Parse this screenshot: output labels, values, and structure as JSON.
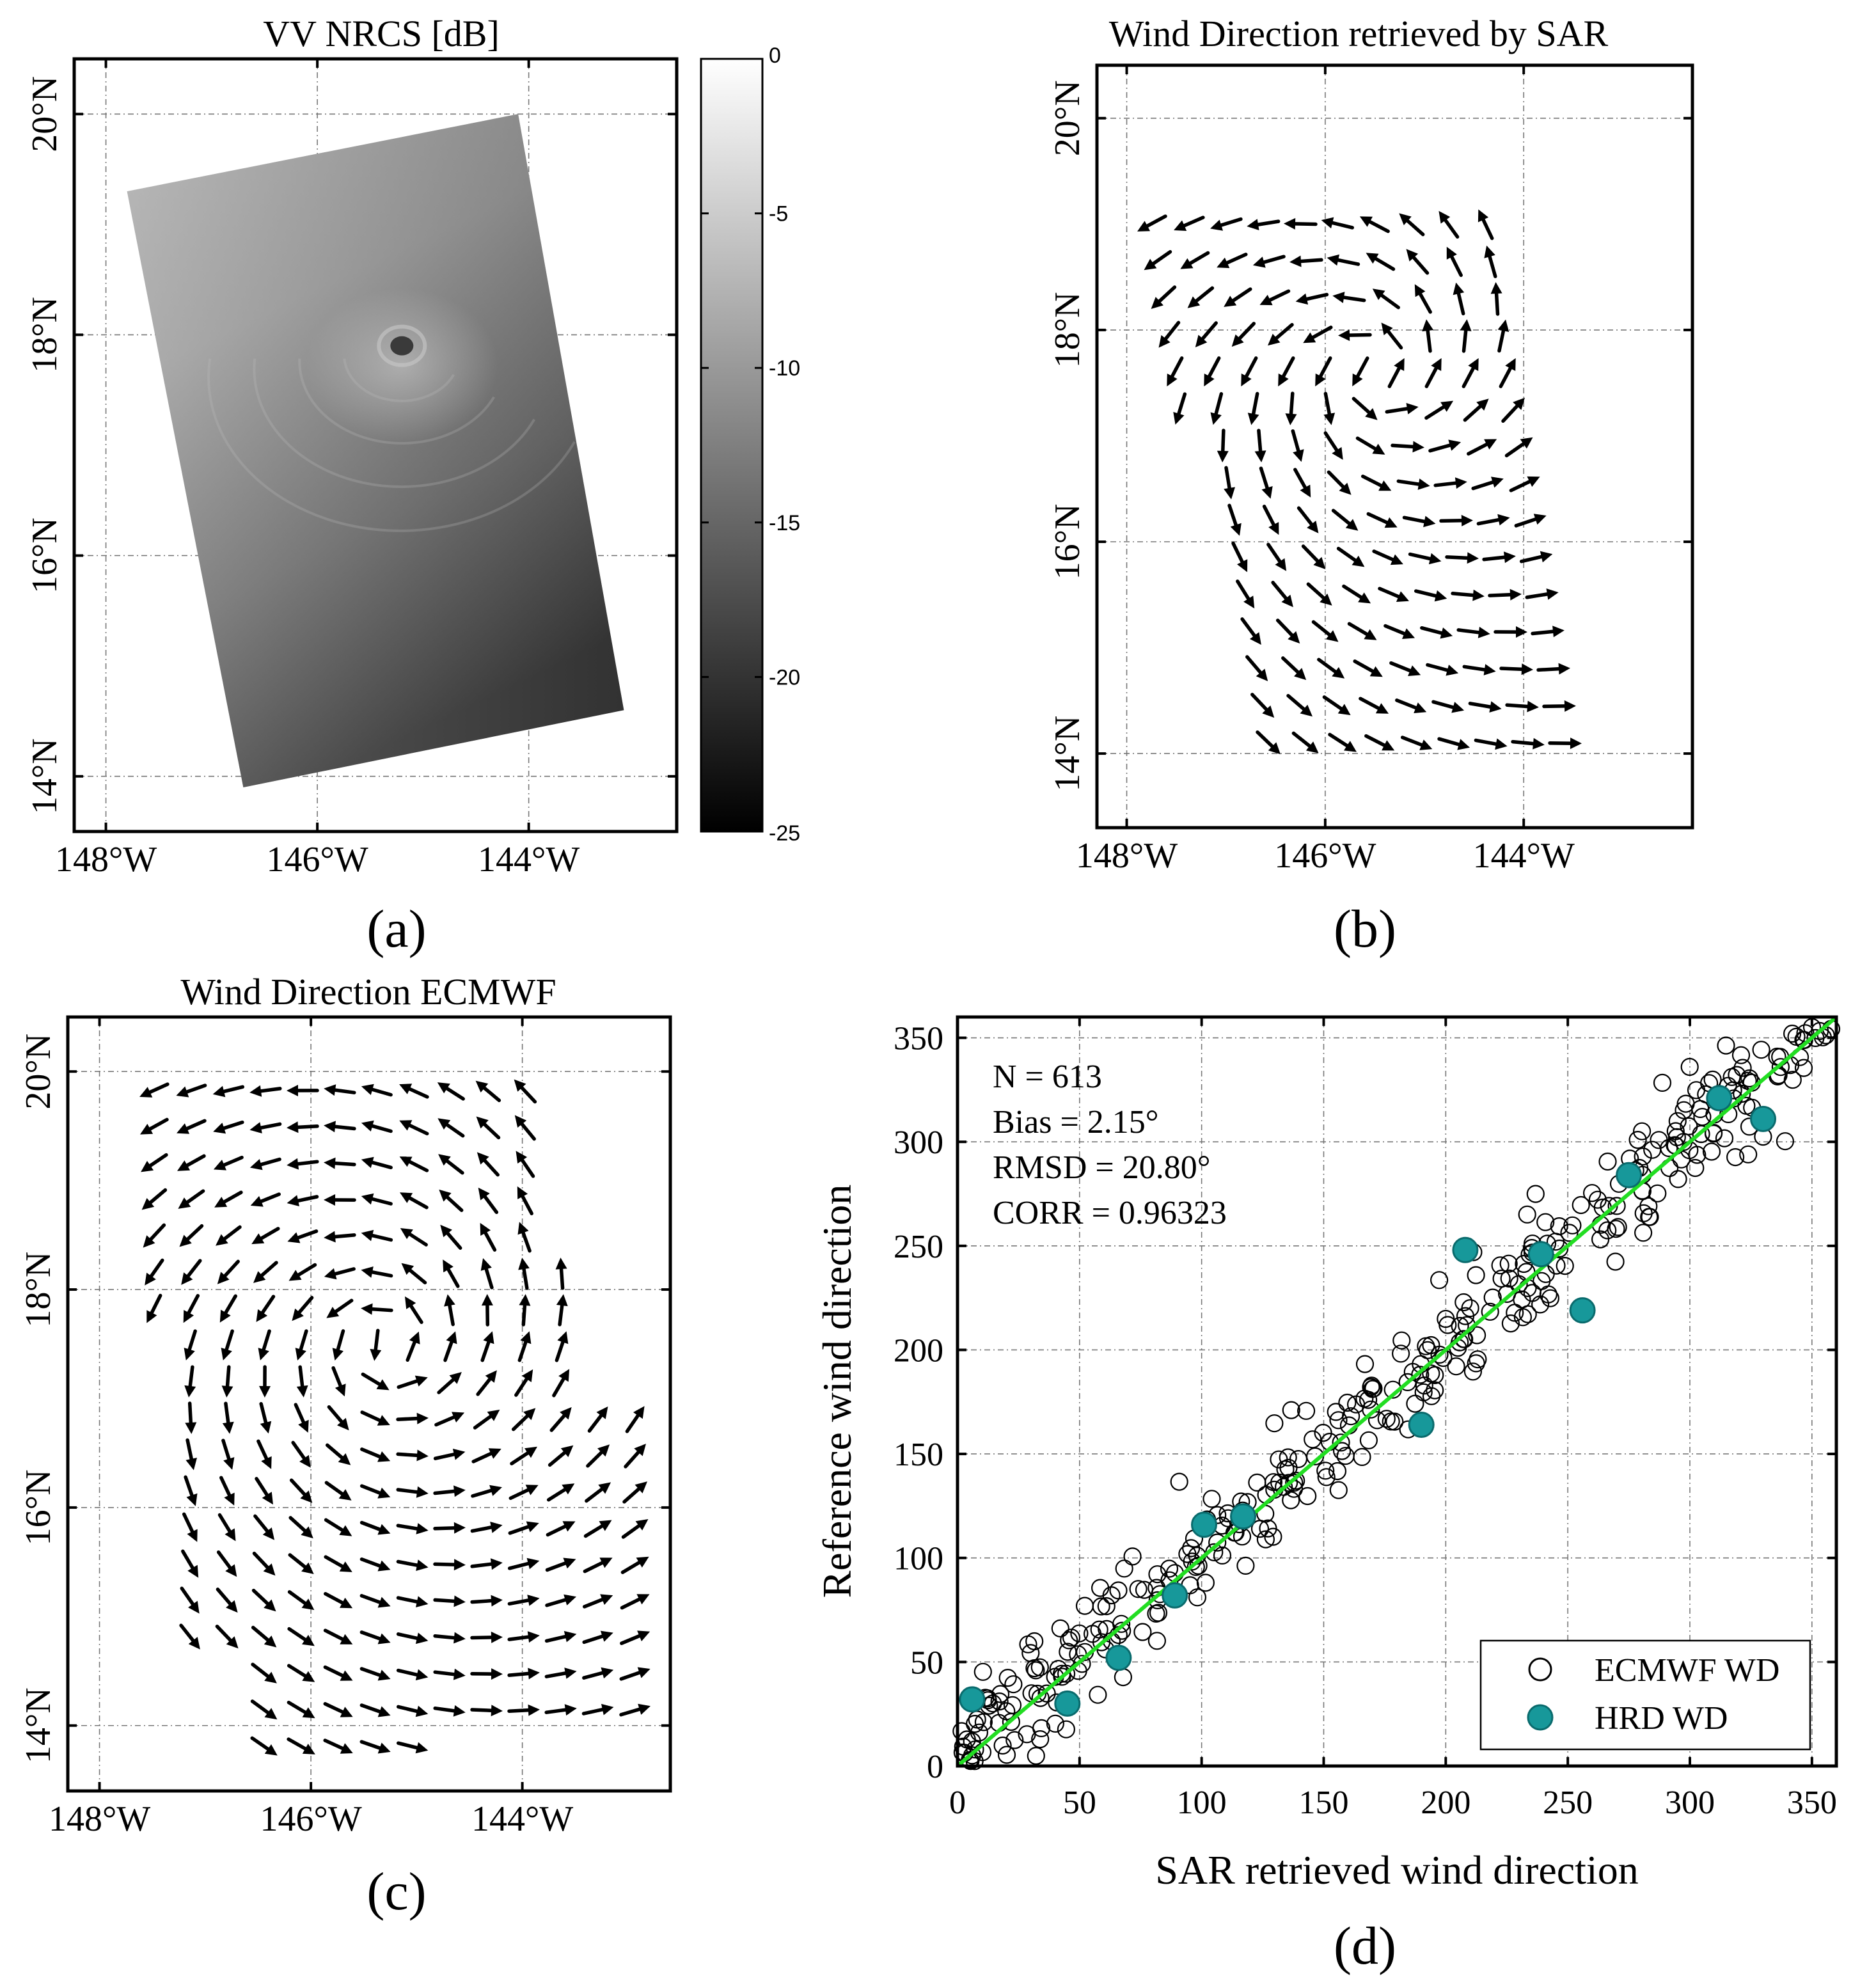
{
  "figure": {
    "panels": [
      {
        "id": "a",
        "panel_label": "(a)",
        "title": "VV NRCS [dB]",
        "colorbar": {
          "label_ticks": [
            "0",
            "-5",
            "-10",
            "-15",
            "-20",
            "-25"
          ],
          "range": [
            -25,
            0
          ],
          "colormap": "gray"
        },
        "lon_labels": [
          "148°W",
          "146°W",
          "144°W"
        ],
        "lat_labels": [
          "14°N",
          "16°N",
          "18°N",
          "20°N"
        ],
        "lon_range": [
          -148.3,
          -142.6
        ],
        "lat_range": [
          13.5,
          20.5
        ],
        "scene_corners_lonlat": [
          [
            -147.8,
            19.3
          ],
          [
            -144.1,
            20.0
          ],
          [
            -143.1,
            14.6
          ],
          [
            -146.7,
            13.9
          ]
        ],
        "eye_lonlat": [
          -145.2,
          17.9
        ]
      },
      {
        "id": "b",
        "panel_label": "(b)",
        "title": "Wind Direction retrieved by SAR",
        "lon_labels": [
          "148°W",
          "146°W",
          "144°W"
        ],
        "lat_labels": [
          "14°N",
          "16°N",
          "18°N",
          "20°N"
        ],
        "lon_range": [
          -148.3,
          -142.3
        ],
        "lat_range": [
          13.3,
          20.5
        ],
        "vortex_center_lonlat": [
          -145.5,
          17.6
        ]
      },
      {
        "id": "c",
        "panel_label": "(c)",
        "title": "Wind Direction ECMWF",
        "lon_labels": [
          "148°W",
          "146°W",
          "144°W"
        ],
        "lat_labels": [
          "14°N",
          "16°N",
          "18°N",
          "20°N"
        ],
        "lon_range": [
          -148.3,
          -142.6
        ],
        "lat_range": [
          13.4,
          20.5
        ],
        "vortex_center_lonlat": [
          -145.3,
          17.5
        ]
      }
    ],
    "scatter": {
      "panel_label": "(d)",
      "chart_data": {
        "type": "scatter",
        "title": "",
        "xlabel": "SAR retrieved wind direction",
        "ylabel": "Reference wind direction",
        "xlim": [
          0,
          360
        ],
        "ylim": [
          0,
          360
        ],
        "xticks": [
          0,
          50,
          100,
          150,
          200,
          250,
          300,
          350
        ],
        "yticks": [
          0,
          50,
          100,
          150,
          200,
          250,
          300,
          350
        ],
        "grid": true,
        "legend_position": "bottom-right",
        "stats": [
          "N = 613",
          "Bias = 2.15°",
          "RMSD = 20.80°",
          "CORR = 0.96323"
        ],
        "reference_line": {
          "name": "1:1 line",
          "x": [
            0,
            360
          ],
          "y": [
            0,
            360
          ],
          "color": "#22dd22"
        },
        "series": [
          {
            "name": "ECMWF WD",
            "marker": "open-circle",
            "color": "#000000",
            "points_description": "613 comparison pairs clustered along the 1:1 line (estimated subset drawn)"
          },
          {
            "name": "HRD WD",
            "marker": "filled-circle",
            "color": "#17989a",
            "points": [
              [
                6,
                32
              ],
              [
                45,
                30
              ],
              [
                66,
                52
              ],
              [
                89,
                82
              ],
              [
                101,
                116
              ],
              [
                117,
                120
              ],
              [
                190,
                164
              ],
              [
                208,
                248
              ],
              [
                239,
                246
              ],
              [
                256,
                219
              ],
              [
                275,
                284
              ],
              [
                312,
                321
              ],
              [
                330,
                311
              ]
            ]
          }
        ]
      }
    }
  }
}
